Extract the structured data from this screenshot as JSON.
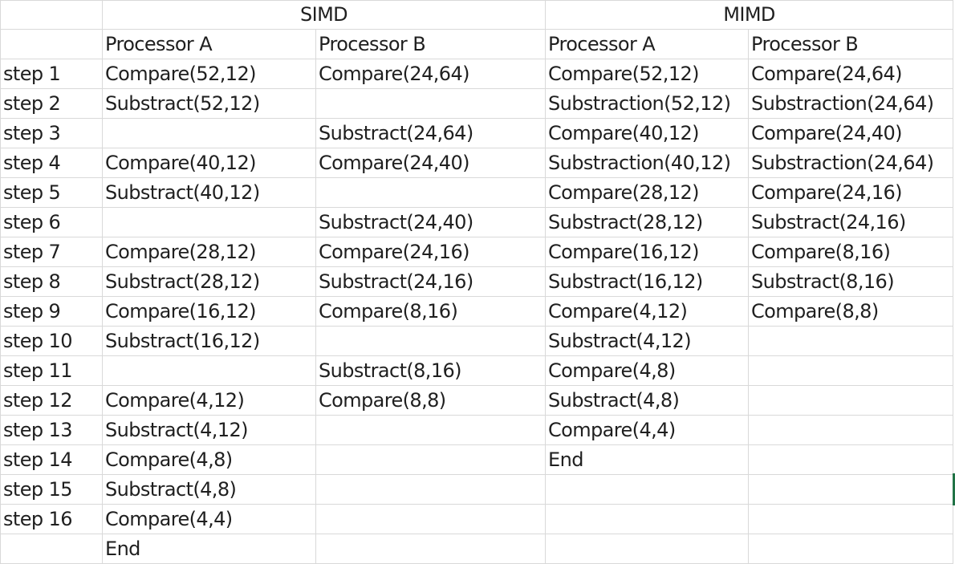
{
  "sheet": {
    "group_headers": [
      "SIMD",
      "MIMD"
    ],
    "column_headers": [
      "",
      "Processor A",
      "Processor B",
      "Processor A",
      "Processor B"
    ],
    "rows": [
      [
        "step 1",
        "Compare(52,12)",
        "Compare(24,64)",
        "Compare(52,12)",
        "Compare(24,64)"
      ],
      [
        "step 2",
        "Substract(52,12)",
        "",
        "Substraction(52,12)",
        "Substraction(24,64)"
      ],
      [
        "step 3",
        "",
        "Substract(24,64)",
        "Compare(40,12)",
        "Compare(24,40)"
      ],
      [
        "step 4",
        "Compare(40,12)",
        "Compare(24,40)",
        "Substraction(40,12)",
        "Substraction(24,64)"
      ],
      [
        "step 5",
        "Substract(40,12)",
        "",
        "Compare(28,12)",
        "Compare(24,16)"
      ],
      [
        "step 6",
        "",
        "Substract(24,40)",
        "Substract(28,12)",
        "Substract(24,16)"
      ],
      [
        "step 7",
        "Compare(28,12)",
        "Compare(24,16)",
        "Compare(16,12)",
        "Compare(8,16)"
      ],
      [
        "step 8",
        "Substract(28,12)",
        "Substract(24,16)",
        "Substract(16,12)",
        "Substract(8,16)"
      ],
      [
        "step 9",
        "Compare(16,12)",
        "Compare(8,16)",
        "Compare(4,12)",
        "Compare(8,8)"
      ],
      [
        "step 10",
        "Substract(16,12)",
        "",
        "Substract(4,12)",
        ""
      ],
      [
        "step 11",
        "",
        "Substract(8,16)",
        "Compare(4,8)",
        ""
      ],
      [
        "step 12",
        "Compare(4,12)",
        "Compare(8,8)",
        "Substract(4,8)",
        ""
      ],
      [
        "step 13",
        "Substract(4,12)",
        "",
        "Compare(4,4)",
        ""
      ],
      [
        "step 14",
        "Compare(4,8)",
        "",
        "End",
        ""
      ],
      [
        "step 15",
        "Substract(4,8)",
        "",
        "",
        ""
      ],
      [
        "step 16",
        "Compare(4,4)",
        "",
        "",
        ""
      ],
      [
        "",
        "End",
        "",
        "",
        ""
      ]
    ]
  },
  "colors": {
    "gridline": "#d9d9d9",
    "text": "#1f1f1f",
    "selection": "#217346"
  }
}
